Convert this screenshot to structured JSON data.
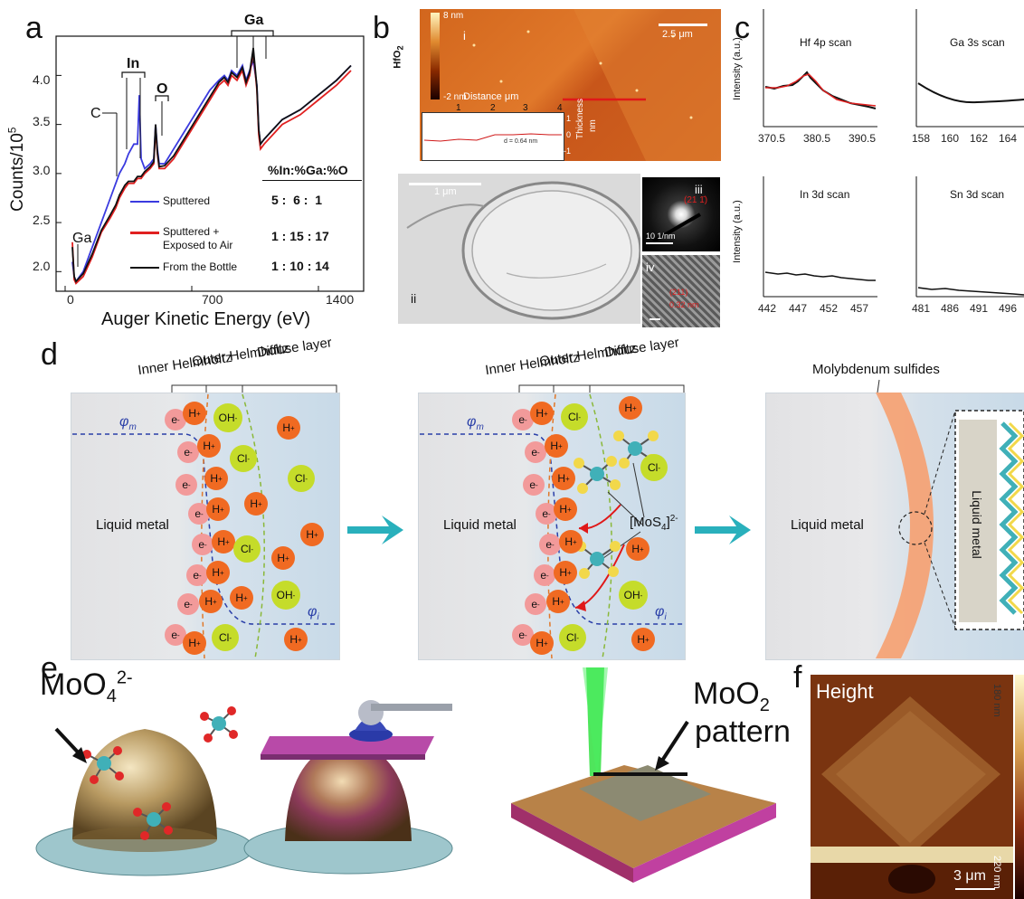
{
  "panel_labels": {
    "a": "a",
    "b": "b",
    "c": "c",
    "d": "d",
    "e": "e",
    "f": "f"
  },
  "panel_a": {
    "ylabel": "Counts/10",
    "ylabel_exp": "5",
    "xlabel": "Auger Kinetic Energy (eV)",
    "yticks": [
      "4.0",
      "3.5",
      "3.0",
      "2.5",
      "2.0"
    ],
    "xticks": [
      "0",
      "700",
      "1400"
    ],
    "peaks": {
      "ga_top": "Ga",
      "in": "In",
      "c": "C",
      "o": "O",
      "ga_low": "Ga"
    },
    "ratio_header": "%In:%Ga:%O",
    "legend": [
      {
        "name": "Sputtered",
        "color": "#3a3adf",
        "ratio": "5 :  6 :  1"
      },
      {
        "name": "Sputtered +",
        "name2": "Exposed to Air",
        "color": "#e02020",
        "ratio": "1 : 15 : 17"
      },
      {
        "name": "From the Bottle",
        "color": "#111111",
        "ratio": "1 : 10 : 14"
      }
    ]
  },
  "chart_data": {
    "type": "line",
    "title": "",
    "xlabel": "Auger Kinetic Energy (eV)",
    "ylabel": "Counts/10^5",
    "xlim": [
      -50,
      1650
    ],
    "ylim": [
      1.8,
      4.4
    ],
    "series": [
      {
        "name": "Sputtered",
        "color": "#3a3adf",
        "x": [
          40,
          50,
          60,
          100,
          150,
          200,
          250,
          280,
          300,
          330,
          350,
          380,
          400,
          410,
          420,
          440,
          470,
          490,
          500,
          510,
          520,
          550,
          600,
          650,
          700,
          750,
          800,
          850,
          880,
          900,
          920,
          950,
          980,
          1000,
          1020,
          1040,
          1060,
          1070,
          1080,
          1100,
          1150,
          1200,
          1300,
          1400,
          1500,
          1580
        ],
        "y": [
          2.1,
          1.95,
          1.9,
          2.0,
          2.25,
          2.5,
          2.75,
          2.9,
          3.0,
          3.1,
          3.2,
          3.3,
          3.3,
          3.8,
          3.15,
          3.05,
          3.1,
          3.15,
          3.5,
          3.25,
          3.1,
          3.1,
          3.25,
          3.4,
          3.55,
          3.7,
          3.85,
          3.95,
          4.0,
          3.95,
          4.05,
          4.0,
          4.1,
          3.95,
          4.05,
          4.15,
          3.9,
          3.45,
          3.3,
          3.35,
          3.45,
          3.55,
          3.65,
          3.8,
          3.95,
          4.1
        ]
      },
      {
        "name": "Sputtered + Exposed to Air",
        "color": "#e02020",
        "x": [
          40,
          50,
          60,
          100,
          150,
          200,
          250,
          280,
          300,
          330,
          350,
          380,
          400,
          420,
          440,
          470,
          490,
          500,
          510,
          520,
          550,
          600,
          650,
          700,
          750,
          800,
          850,
          880,
          900,
          920,
          950,
          980,
          1000,
          1020,
          1040,
          1060,
          1070,
          1080,
          1100,
          1150,
          1200,
          1300,
          1400,
          1500,
          1580
        ],
        "y": [
          2.3,
          1.92,
          1.88,
          1.95,
          2.15,
          2.4,
          2.55,
          2.65,
          2.75,
          2.85,
          2.9,
          2.9,
          2.95,
          2.95,
          3.0,
          3.05,
          3.1,
          3.45,
          3.2,
          3.05,
          3.05,
          3.15,
          3.3,
          3.45,
          3.6,
          3.75,
          3.9,
          3.95,
          3.9,
          4.0,
          3.95,
          4.05,
          3.9,
          4.0,
          4.25,
          3.85,
          3.4,
          3.25,
          3.3,
          3.4,
          3.5,
          3.6,
          3.75,
          3.9,
          4.05
        ]
      },
      {
        "name": "From the Bottle",
        "color": "#111111",
        "x": [
          40,
          50,
          60,
          100,
          150,
          200,
          250,
          280,
          300,
          330,
          350,
          380,
          400,
          420,
          440,
          470,
          490,
          500,
          510,
          520,
          550,
          600,
          650,
          700,
          750,
          800,
          850,
          880,
          900,
          920,
          950,
          980,
          1000,
          1020,
          1040,
          1060,
          1070,
          1080,
          1100,
          1150,
          1200,
          1300,
          1400,
          1500,
          1580
        ],
        "y": [
          2.25,
          1.95,
          1.9,
          1.98,
          2.18,
          2.42,
          2.58,
          2.68,
          2.78,
          2.88,
          2.92,
          2.92,
          2.97,
          2.97,
          3.02,
          3.07,
          3.12,
          3.5,
          3.22,
          3.07,
          3.08,
          3.18,
          3.33,
          3.48,
          3.63,
          3.78,
          3.93,
          3.98,
          3.93,
          4.03,
          3.98,
          4.08,
          3.93,
          4.03,
          4.28,
          3.88,
          3.45,
          3.3,
          3.35,
          3.45,
          3.55,
          3.65,
          3.8,
          3.95,
          4.1
        ]
      }
    ]
  },
  "panel_b": {
    "colorbar_top": "8 nm",
    "colorbar_bottom": "-2 nm",
    "material": "HfO",
    "material_sub": "2",
    "scalebar": "2.5 μm",
    "roman_i": "i",
    "distance_label": "Distance μm",
    "distance_ticks": [
      "1",
      "2",
      "3",
      "4"
    ],
    "thickness_label": "Thickness",
    "thickness_unit": "nm",
    "thickness_ticks": [
      "1",
      "0",
      "-1"
    ],
    "d_label": "d = 0.64 nm",
    "tem_scalebar": "1 μm",
    "roman_ii": "ii",
    "roman_iii": "iii",
    "roman_iv": "iv",
    "saed_scalebar": "10 1/nm",
    "miller": "(21 1̄)",
    "hr_label": "(211)",
    "hr_d": "0.32 nm"
  },
  "panel_c": {
    "ylabel": "Intensity (a.u.)",
    "plots": [
      {
        "title": "Hf 4p scan",
        "ticks": [
          "370.5",
          "380.5",
          "390.5"
        ]
      },
      {
        "title": "Ga 3s scan",
        "ticks": [
          "158",
          "160",
          "162",
          "164"
        ]
      },
      {
        "title": "In 3d scan",
        "ticks": [
          "442",
          "447",
          "452",
          "457"
        ]
      },
      {
        "title": "Sn 3d scan",
        "ticks": [
          "481",
          "486",
          "491",
          "496"
        ]
      }
    ]
  },
  "panel_d": {
    "inner": "Inner Helmholtz",
    "outer": "Outer Helmholtz",
    "diffuse": "Diffuse layer",
    "phi_m": "φ",
    "phi_m_sub": "m",
    "phi_i": "φ",
    "phi_i_sub": "i",
    "liquid_metal": "Liquid metal",
    "mos4": "[MoS",
    "mos4_sub": "4",
    "mos4_end": "]",
    "mos4_sup": "2-",
    "moly": "Molybdenum sulfides",
    "lm_vertical": "Liquid metal",
    "h": "H",
    "e": "e",
    "cl": "Cl",
    "oh": "OH"
  },
  "panel_e": {
    "moo4": "MoO",
    "moo4_sub": "4",
    "moo4_sup": "2-",
    "moo2": "MoO",
    "moo2_sub": "2",
    "pattern": "pattern"
  },
  "panel_f": {
    "height": "Height",
    "scalebar": "3 μm",
    "cb_top": "180 nm",
    "cb_bottom": "220 nm"
  }
}
